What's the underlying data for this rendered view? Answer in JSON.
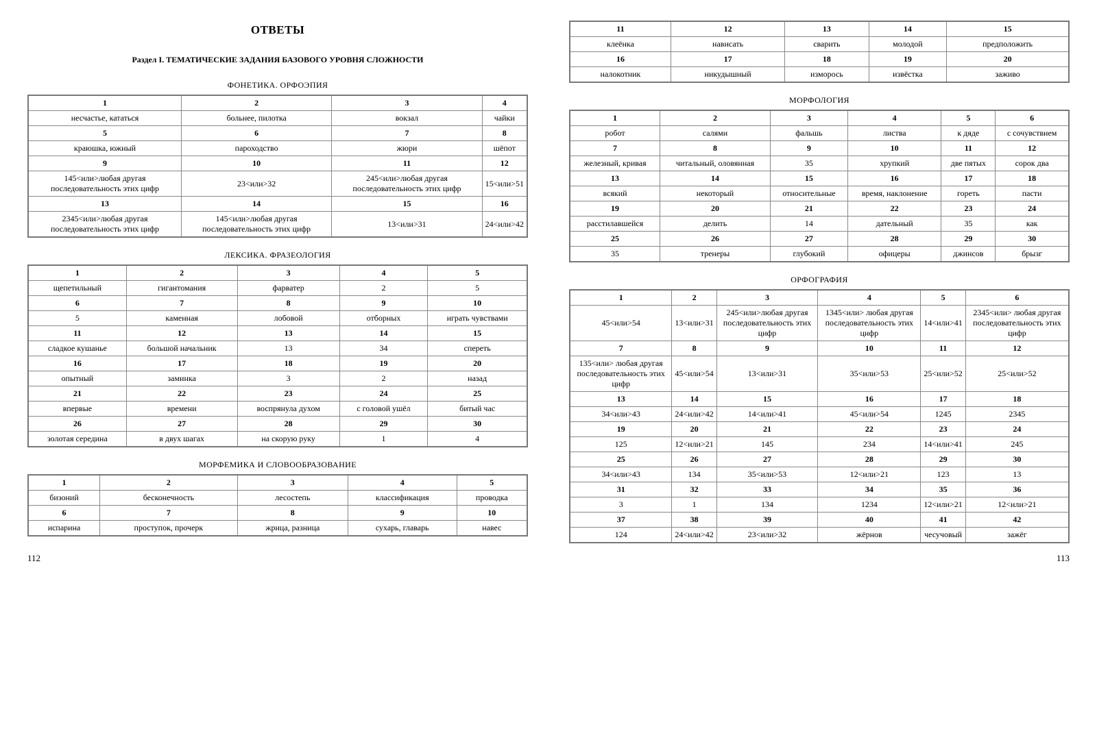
{
  "title": "ОТВЕТЫ",
  "section": "Раздел I. ТЕМАТИЧЕСКИЕ ЗАДАНИЯ БАЗОВОГО УРОВНЯ СЛОЖНОСТИ",
  "page_left": "112",
  "page_right": "113",
  "tables": {
    "phon": {
      "title": "ФОНЕТИКА. ОРФОЭПИЯ",
      "rows": [
        {
          "hd": true,
          "c": [
            "1",
            "2",
            "3",
            "4"
          ]
        },
        {
          "c": [
            "несчастье, кататься",
            "больнее, пилотка",
            "вокзал",
            "чайки"
          ]
        },
        {
          "hd": true,
          "c": [
            "5",
            "6",
            "7",
            "8"
          ]
        },
        {
          "c": [
            "краюшка, южный",
            "пароходство",
            "жюри",
            "шёпот"
          ]
        },
        {
          "hd": true,
          "c": [
            "9",
            "10",
            "11",
            "12"
          ]
        },
        {
          "c": [
            "145<или>любая другая последовательность этих цифр",
            "23<или>32",
            "245<или>любая другая последовательность этих цифр",
            "15<или>51"
          ]
        },
        {
          "hd": true,
          "c": [
            "13",
            "14",
            "15",
            "16"
          ]
        },
        {
          "c": [
            "2345<или>любая другая последовательность этих цифр",
            "145<или>любая другая последовательность этих цифр",
            "13<или>31",
            "24<или>42"
          ]
        }
      ]
    },
    "lex": {
      "title": "ЛЕКСИКА. ФРАЗЕОЛОГИЯ",
      "rows": [
        {
          "hd": true,
          "c": [
            "1",
            "2",
            "3",
            "4",
            "5"
          ]
        },
        {
          "c": [
            "щепетильный",
            "гигантомания",
            "фарватер",
            "2",
            "5"
          ]
        },
        {
          "hd": true,
          "c": [
            "6",
            "7",
            "8",
            "9",
            "10"
          ]
        },
        {
          "c": [
            "5",
            "каменная",
            "лобовой",
            "отборных",
            "играть чувствами"
          ]
        },
        {
          "hd": true,
          "c": [
            "11",
            "12",
            "13",
            "14",
            "15"
          ]
        },
        {
          "c": [
            "сладкое кушанье",
            "большой начальник",
            "13",
            "34",
            "спереть"
          ]
        },
        {
          "hd": true,
          "c": [
            "16",
            "17",
            "18",
            "19",
            "20"
          ]
        },
        {
          "c": [
            "опытный",
            "заминка",
            "3",
            "2",
            "назад"
          ]
        },
        {
          "hd": true,
          "c": [
            "21",
            "22",
            "23",
            "24",
            "25"
          ]
        },
        {
          "c": [
            "впервые",
            "времени",
            "воспрянула духом",
            "с головой ушёл",
            "битый час"
          ]
        },
        {
          "hd": true,
          "c": [
            "26",
            "27",
            "28",
            "29",
            "30"
          ]
        },
        {
          "c": [
            "золотая середина",
            "в двух шагах",
            "на скорую руку",
            "1",
            "4"
          ]
        }
      ]
    },
    "morphem": {
      "title": "МОРФЕМИКА И СЛОВООБРАЗОВАНИЕ",
      "rows": [
        {
          "hd": true,
          "c": [
            "1",
            "2",
            "3",
            "4",
            "5"
          ]
        },
        {
          "c": [
            "бизоний",
            "бесконечность",
            "лесостепь",
            "классификация",
            "проводка"
          ]
        },
        {
          "hd": true,
          "c": [
            "6",
            "7",
            "8",
            "9",
            "10"
          ]
        },
        {
          "c": [
            "испарина",
            "проступок, прочерк",
            "жрица, разница",
            "сухарь, главарь",
            "навес"
          ]
        }
      ]
    },
    "morphem2": {
      "rows": [
        {
          "hd": true,
          "c": [
            "11",
            "12",
            "13",
            "14",
            "15"
          ]
        },
        {
          "c": [
            "клеёнка",
            "нависать",
            "сварить",
            "молодой",
            "предположить"
          ]
        },
        {
          "hd": true,
          "c": [
            "16",
            "17",
            "18",
            "19",
            "20"
          ]
        },
        {
          "c": [
            "налокотник",
            "никудышный",
            "изморось",
            "извёстка",
            "заживо"
          ]
        }
      ]
    },
    "morph": {
      "title": "МОРФОЛОГИЯ",
      "rows": [
        {
          "hd": true,
          "c": [
            "1",
            "2",
            "3",
            "4",
            "5",
            "6"
          ]
        },
        {
          "c": [
            "робот",
            "салями",
            "фальшь",
            "листва",
            "к дяде",
            "с сочувствием"
          ]
        },
        {
          "hd": true,
          "c": [
            "7",
            "8",
            "9",
            "10",
            "11",
            "12"
          ]
        },
        {
          "c": [
            "железный, кривая",
            "читальный, оловянная",
            "35",
            "хрупкий",
            "две пятых",
            "сорок два"
          ]
        },
        {
          "hd": true,
          "c": [
            "13",
            "14",
            "15",
            "16",
            "17",
            "18"
          ]
        },
        {
          "c": [
            "всякий",
            "некоторый",
            "относительные",
            "время, наклонение",
            "гореть",
            "пасти"
          ]
        },
        {
          "hd": true,
          "c": [
            "19",
            "20",
            "21",
            "22",
            "23",
            "24"
          ]
        },
        {
          "c": [
            "расстилавшейся",
            "делить",
            "14",
            "дательный",
            "35",
            "как"
          ]
        },
        {
          "hd": true,
          "c": [
            "25",
            "26",
            "27",
            "28",
            "29",
            "30"
          ]
        },
        {
          "c": [
            "35",
            "тренеры",
            "глубокий",
            "офицеры",
            "джинсов",
            "брызг"
          ]
        }
      ]
    },
    "orf": {
      "title": "ОРФОГРАФИЯ",
      "rows": [
        {
          "hd": true,
          "c": [
            "1",
            "2",
            "3",
            "4",
            "5",
            "6"
          ]
        },
        {
          "c": [
            "45<или>54",
            "13<или>31",
            "245<или>лю­бая другая последователь­ность этих цифр",
            "1345<или> любая другая последователь­ность этих цифр",
            "14<или>41",
            "2345<или> любая другая последователь­ность этих цифр"
          ]
        },
        {
          "hd": true,
          "c": [
            "7",
            "8",
            "9",
            "10",
            "11",
            "12"
          ]
        },
        {
          "c": [
            "135<или> любая другая последователь­ность этих цифр",
            "45<или>54",
            "13<или>31",
            "35<или>53",
            "25<или>52",
            "25<или>52"
          ]
        },
        {
          "hd": true,
          "c": [
            "13",
            "14",
            "15",
            "16",
            "17",
            "18"
          ]
        },
        {
          "c": [
            "34<или>43",
            "24<или>42",
            "14<или>41",
            "45<или>54",
            "1245",
            "2345"
          ]
        },
        {
          "hd": true,
          "c": [
            "19",
            "20",
            "21",
            "22",
            "23",
            "24"
          ]
        },
        {
          "c": [
            "125",
            "12<или>21",
            "145",
            "234",
            "14<или>41",
            "245"
          ]
        },
        {
          "hd": true,
          "c": [
            "25",
            "26",
            "27",
            "28",
            "29",
            "30"
          ]
        },
        {
          "c": [
            "34<или>43",
            "134",
            "35<или>53",
            "12<или>21",
            "123",
            "13"
          ]
        },
        {
          "hd": true,
          "c": [
            "31",
            "32",
            "33",
            "34",
            "35",
            "36"
          ]
        },
        {
          "c": [
            "3",
            "1",
            "134",
            "1234",
            "12<или>21",
            "12<или>21"
          ]
        },
        {
          "hd": true,
          "c": [
            "37",
            "38",
            "39",
            "40",
            "41",
            "42"
          ]
        },
        {
          "c": [
            "124",
            "24<или>42",
            "23<или>32",
            "жёрнов",
            "чесучовый",
            "зажёг"
          ]
        }
      ]
    }
  }
}
